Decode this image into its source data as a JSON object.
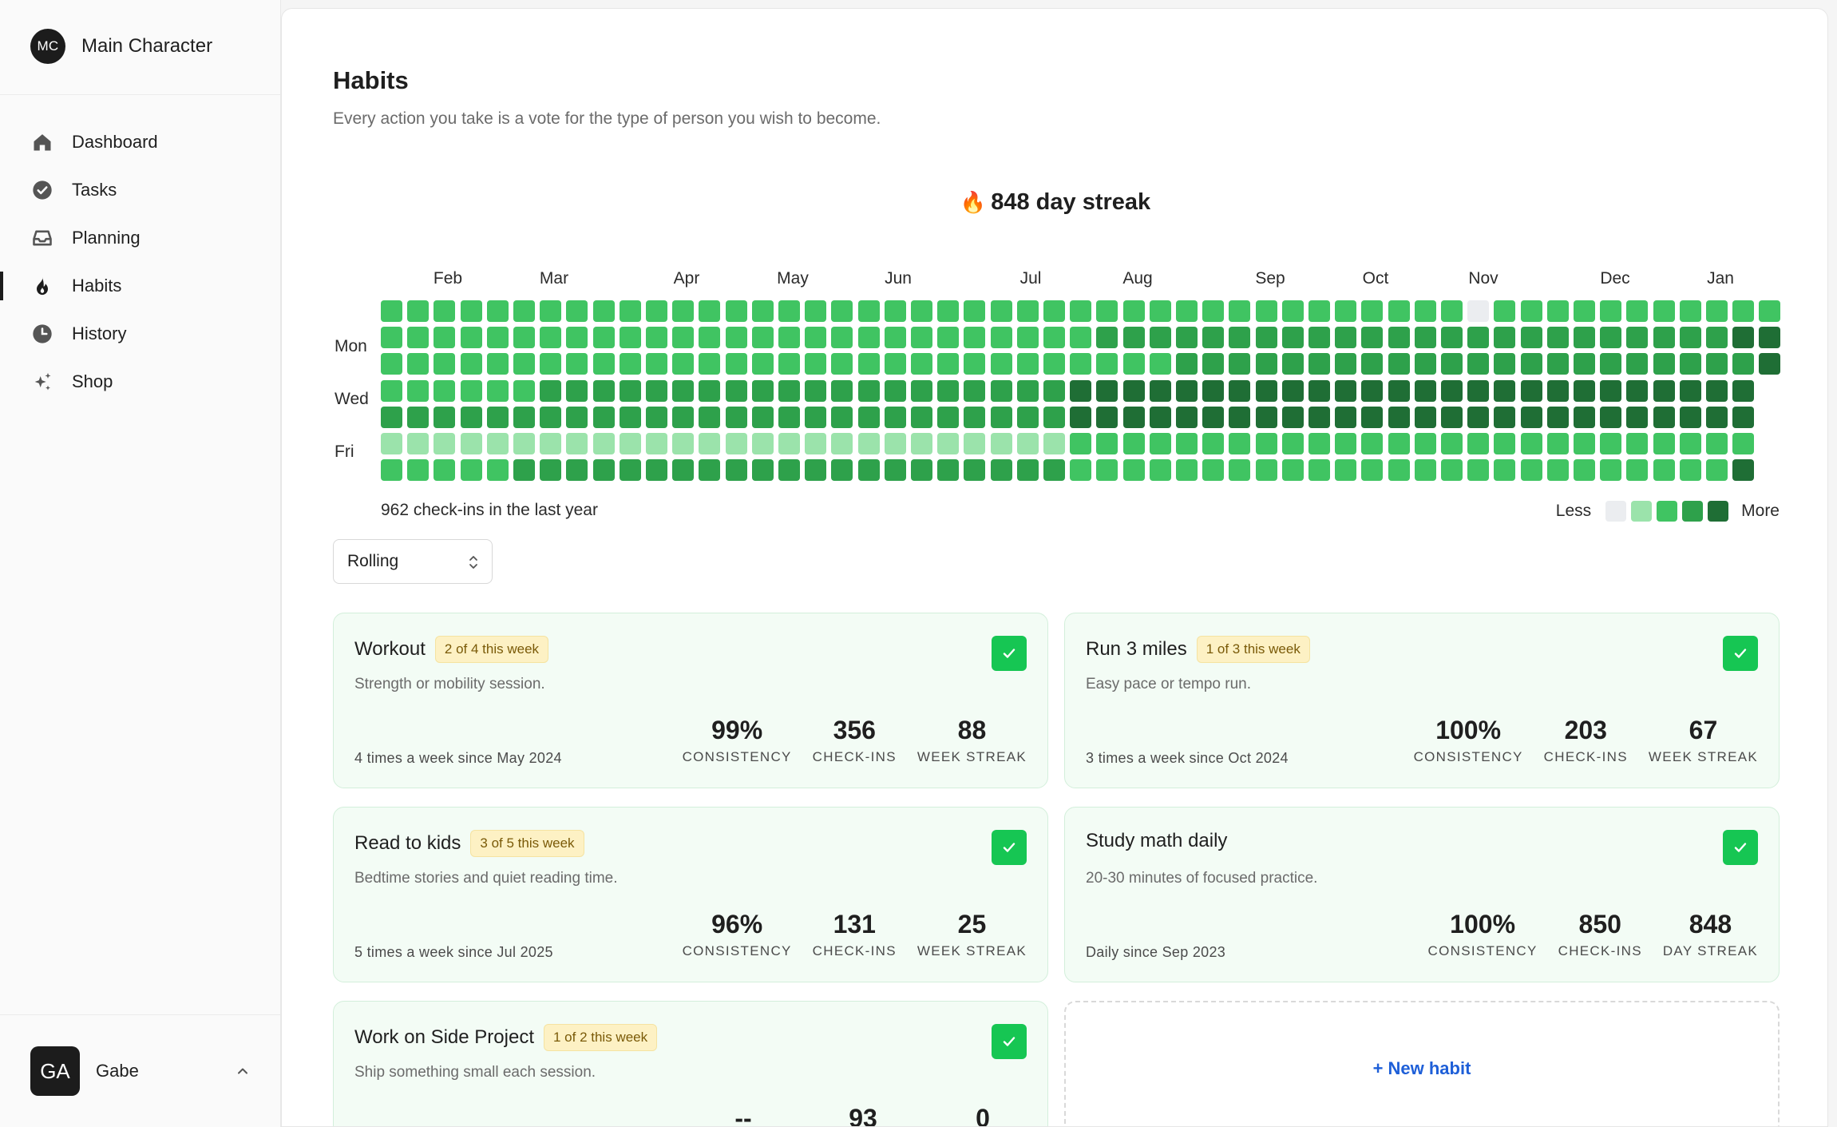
{
  "brand": {
    "initials": "MC",
    "name": "Main Character"
  },
  "nav": {
    "items": [
      {
        "label": "Dashboard",
        "icon": "home-icon"
      },
      {
        "label": "Tasks",
        "icon": "check-circle-icon"
      },
      {
        "label": "Planning",
        "icon": "inbox-icon"
      },
      {
        "label": "Habits",
        "icon": "flame-icon",
        "active": true
      },
      {
        "label": "History",
        "icon": "clock-icon"
      },
      {
        "label": "Shop",
        "icon": "sparkles-icon"
      }
    ]
  },
  "user": {
    "initials": "GA",
    "name": "Gabe"
  },
  "page": {
    "title": "Habits",
    "subtitle": "Every action you take is a vote for the type of person you wish to become."
  },
  "streak": {
    "emoji": "🔥",
    "text": "848 day streak"
  },
  "heatmap": {
    "months": [
      "Feb",
      "Mar",
      "Apr",
      "May",
      "Jun",
      "Jul",
      "Aug",
      "Sep",
      "Oct",
      "Nov",
      "Dec",
      "Jan"
    ],
    "day_labels": [
      "Mon",
      "Wed",
      "Fri"
    ],
    "checkins_text": "962 check-ins in the last year",
    "legend_less": "Less",
    "legend_more": "More",
    "colors": [
      "#ebedf0",
      "#9be3ab",
      "#40c462",
      "#2ea14b",
      "#1f6e35"
    ]
  },
  "filter": {
    "selected": "Rolling"
  },
  "habits": [
    {
      "title": "Workout",
      "badge": "2 of 4 this week",
      "desc": "Strength or mobility session.",
      "since": "4 times a week since May 2024",
      "stats": [
        {
          "value": "99%",
          "label": "CONSISTENCY"
        },
        {
          "value": "356",
          "label": "CHECK-INS"
        },
        {
          "value": "88",
          "label": "WEEK STREAK"
        }
      ]
    },
    {
      "title": "Run 3 miles",
      "badge": "1 of 3 this week",
      "desc": "Easy pace or tempo run.",
      "since": "3 times a week since Oct 2024",
      "stats": [
        {
          "value": "100%",
          "label": "CONSISTENCY"
        },
        {
          "value": "203",
          "label": "CHECK-INS"
        },
        {
          "value": "67",
          "label": "WEEK STREAK"
        }
      ]
    },
    {
      "title": "Read to kids",
      "badge": "3 of 5 this week",
      "desc": "Bedtime stories and quiet reading time.",
      "since": "5 times a week since Jul 2025",
      "stats": [
        {
          "value": "96%",
          "label": "CONSISTENCY"
        },
        {
          "value": "131",
          "label": "CHECK-INS"
        },
        {
          "value": "25",
          "label": "WEEK STREAK"
        }
      ]
    },
    {
      "title": "Study math daily",
      "badge": "",
      "desc": "20-30 minutes of focused practice.",
      "since": "Daily since Sep 2023",
      "stats": [
        {
          "value": "100%",
          "label": "CONSISTENCY"
        },
        {
          "value": "850",
          "label": "CHECK-INS"
        },
        {
          "value": "848",
          "label": "DAY STREAK"
        }
      ]
    },
    {
      "title": "Work on Side Project",
      "badge": "1 of 2 this week",
      "desc": "Ship something small each session.",
      "since": "",
      "stats": [
        {
          "value": "--",
          "label": ""
        },
        {
          "value": "93",
          "label": ""
        },
        {
          "value": "0",
          "label": ""
        }
      ]
    }
  ],
  "new_habit_label": "+ New habit"
}
